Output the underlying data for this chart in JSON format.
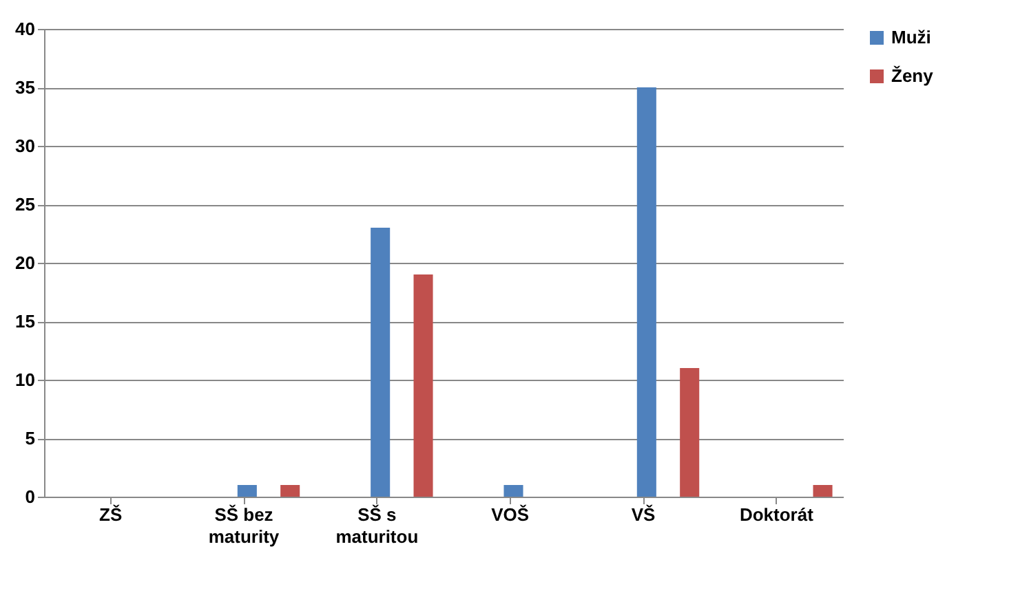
{
  "chart_data": {
    "type": "bar",
    "categories": [
      "ZŠ",
      "SŠ bez maturity",
      "SŠ s maturitou",
      "VOŠ",
      "VŠ",
      "Doktorát"
    ],
    "series": [
      {
        "name": "Muži",
        "color": "#4f81bd",
        "values": [
          0,
          1,
          23,
          1,
          35,
          0
        ]
      },
      {
        "name": "Ženy",
        "color": "#c0504d",
        "values": [
          0,
          1,
          19,
          0,
          11,
          1
        ]
      }
    ],
    "ylim": [
      0,
      40
    ],
    "yticks": [
      0,
      5,
      10,
      15,
      20,
      25,
      30,
      35,
      40
    ],
    "grid": "y",
    "legend": "right"
  }
}
